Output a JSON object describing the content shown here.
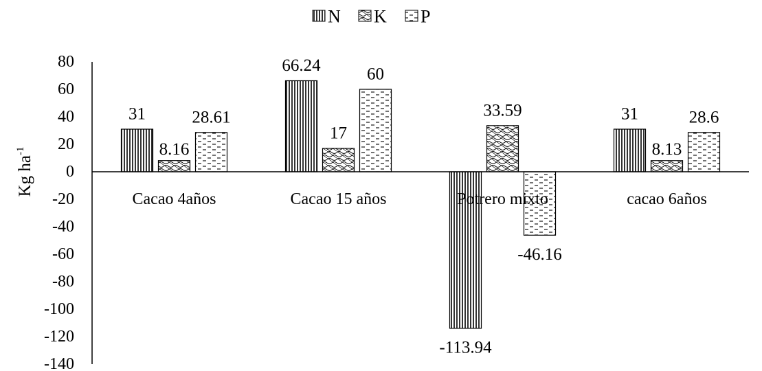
{
  "chart_data": {
    "type": "bar",
    "categories": [
      "Cacao 4años",
      "Cacao 15 años",
      "Potrero mixto",
      "cacao 6años"
    ],
    "series": [
      {
        "name": "N",
        "values": [
          31,
          66.24,
          -113.94,
          31
        ],
        "labels": [
          "31",
          "66.24",
          "-113.94",
          "31"
        ],
        "pattern": "vertical-lines"
      },
      {
        "name": "K",
        "values": [
          8.16,
          17,
          33.59,
          8.13
        ],
        "labels": [
          "8.16",
          "17",
          "33.59",
          "8.13"
        ],
        "pattern": "wavy-crosshatch"
      },
      {
        "name": "P",
        "values": [
          28.61,
          60,
          -46.16,
          28.6
        ],
        "labels": [
          "28.61",
          "60",
          "-46.16",
          "28.6"
        ],
        "pattern": "dashed-lines"
      }
    ],
    "ylabel_main": "Kg ha",
    "ylabel_sup": "-1",
    "ylim": [
      -140,
      80
    ],
    "yticks": [
      80,
      60,
      40,
      20,
      0,
      -20,
      -40,
      -60,
      -80,
      -100,
      -120,
      -140
    ],
    "grid": false,
    "legend_position": "top-center"
  }
}
